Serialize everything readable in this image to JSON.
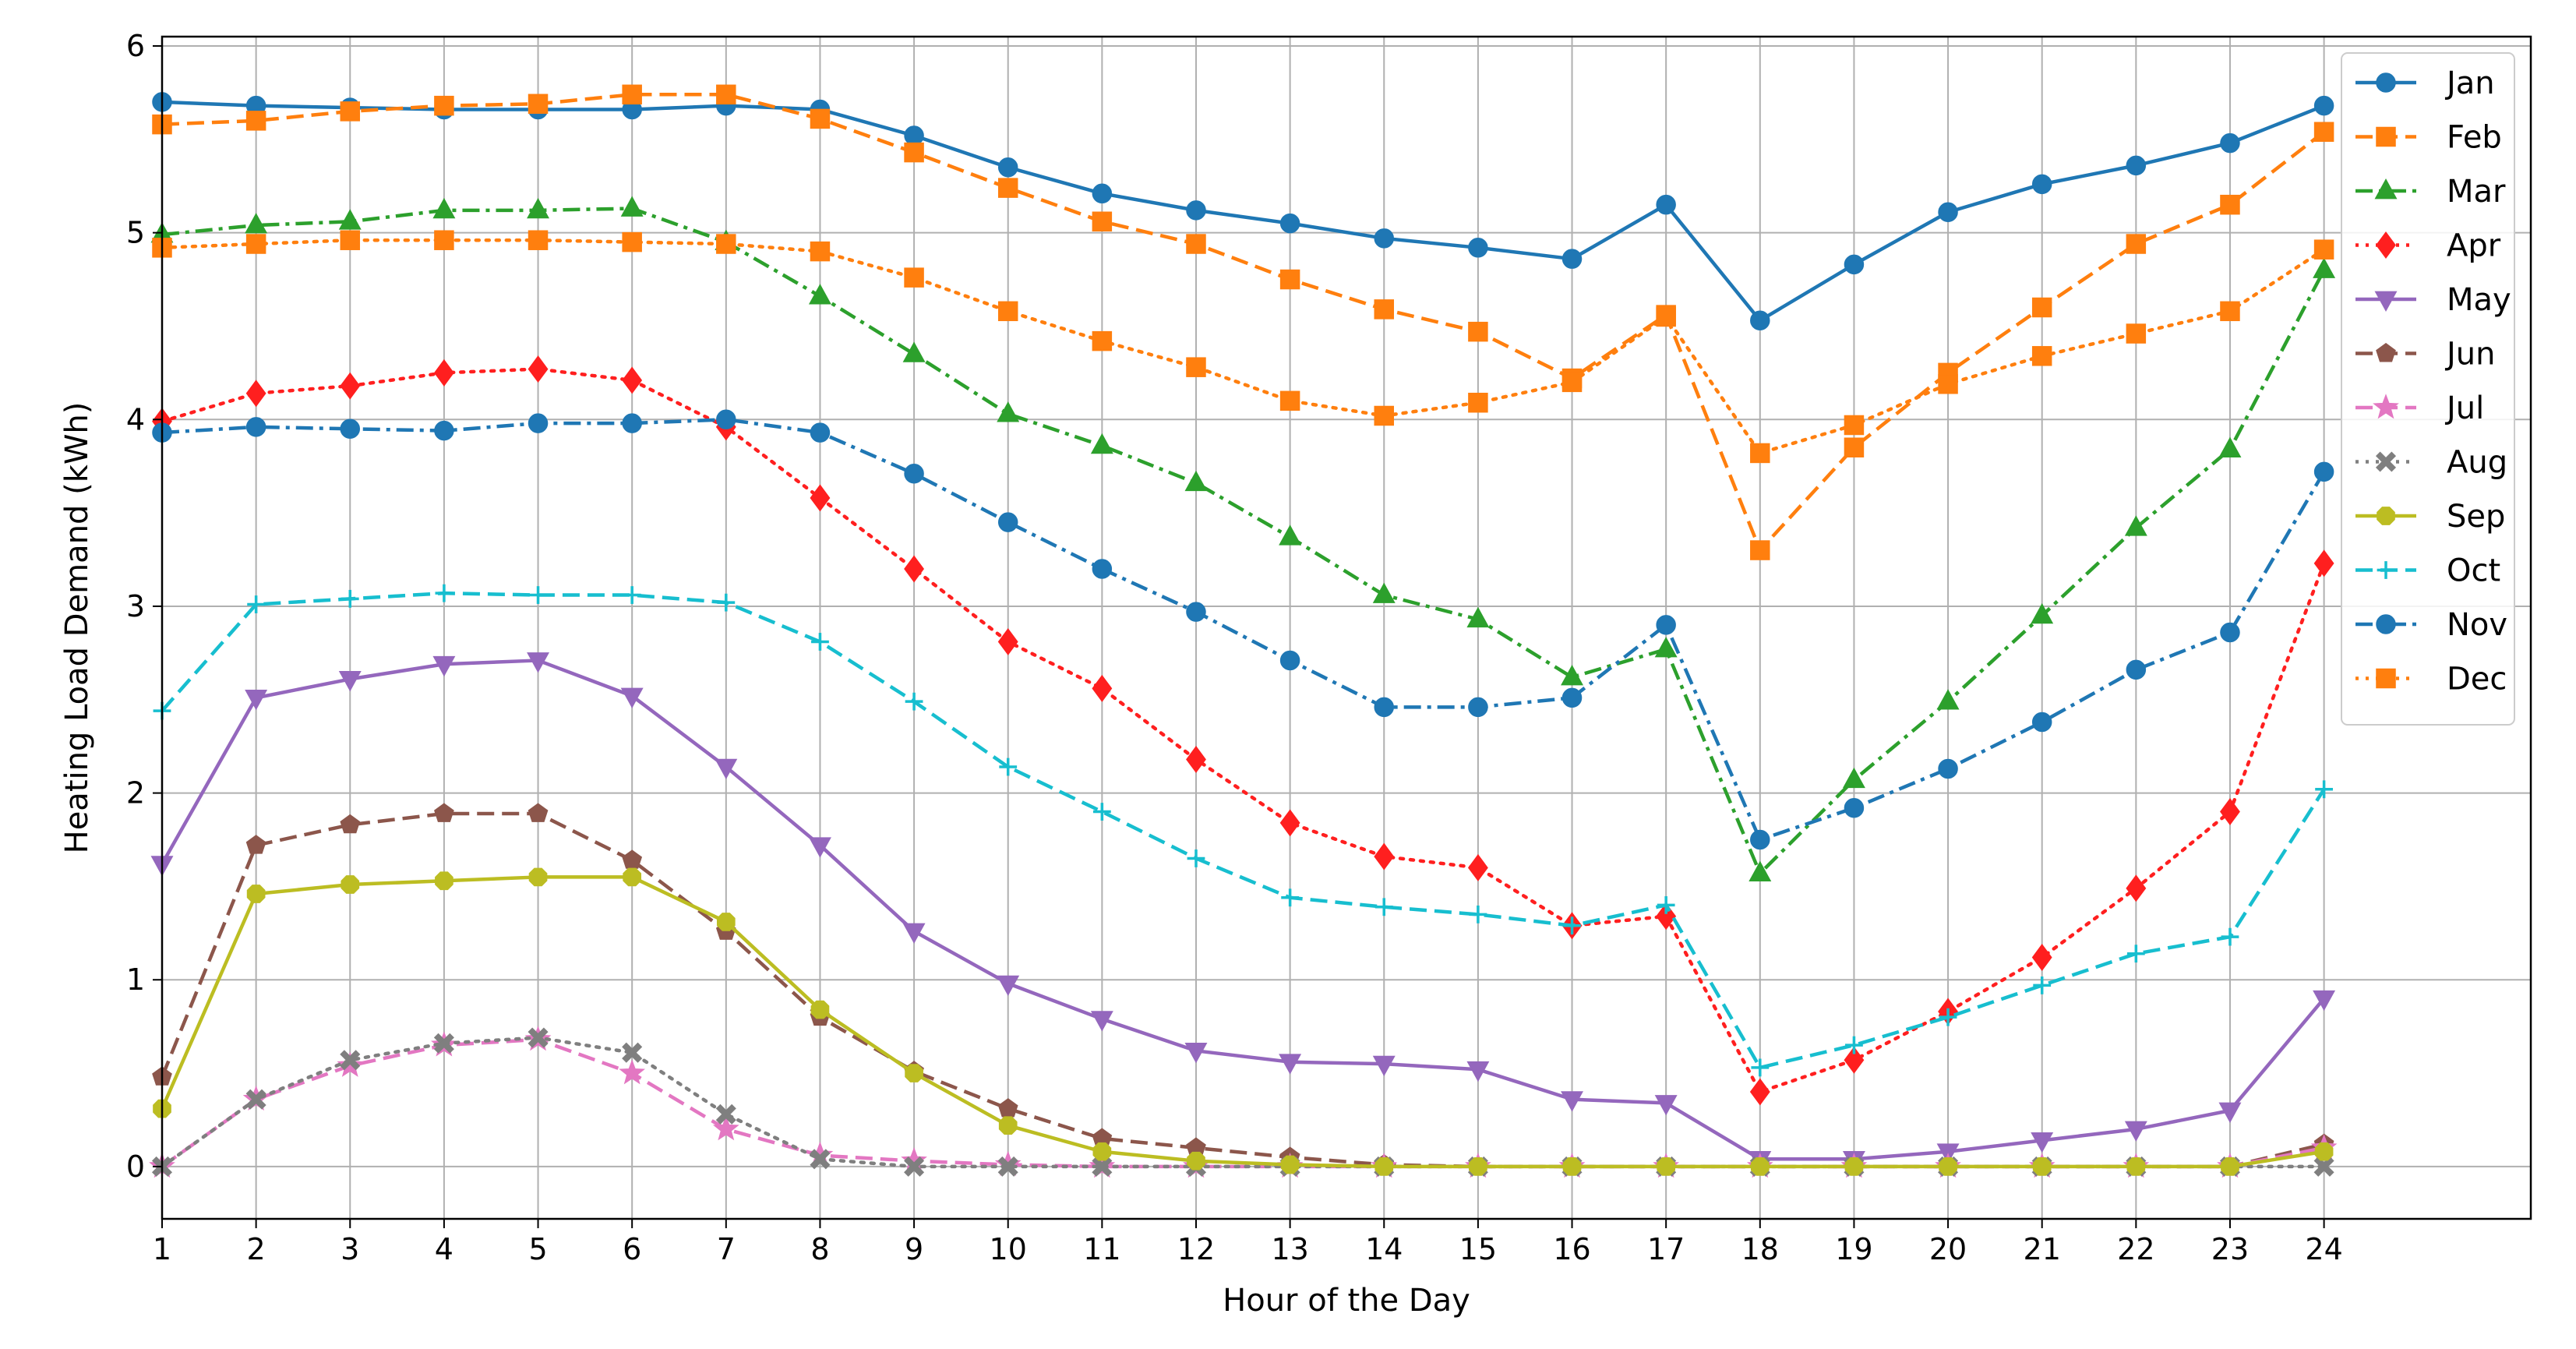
{
  "chart_data": {
    "type": "line",
    "title": "",
    "xlabel": "Hour of the Day",
    "ylabel": "Heating Load Demand (kWh)",
    "x": [
      1,
      2,
      3,
      4,
      5,
      6,
      7,
      8,
      9,
      10,
      11,
      12,
      13,
      14,
      15,
      16,
      17,
      18,
      19,
      20,
      21,
      22,
      23,
      24
    ],
    "xlim": [
      1,
      26.2
    ],
    "ylim": [
      -0.28,
      6.05
    ],
    "xticks": [
      "1",
      "2",
      "3",
      "4",
      "5",
      "6",
      "7",
      "8",
      "9",
      "10",
      "11",
      "12",
      "13",
      "14",
      "15",
      "16",
      "17",
      "18",
      "19",
      "20",
      "21",
      "22",
      "23",
      "24"
    ],
    "yticks": [
      "0",
      "1",
      "2",
      "3",
      "4",
      "5",
      "6"
    ],
    "grid": true,
    "legend_position": "top-right",
    "series": [
      {
        "name": "Jan",
        "color": "#1f77b4",
        "dash": "solid",
        "marker": "circle",
        "values": [
          5.7,
          5.68,
          5.67,
          5.66,
          5.66,
          5.66,
          5.68,
          5.66,
          5.52,
          5.35,
          5.21,
          5.12,
          5.05,
          4.97,
          4.92,
          4.86,
          5.15,
          4.53,
          4.83,
          5.11,
          5.26,
          5.36,
          5.48,
          5.68
        ]
      },
      {
        "name": "Feb",
        "color": "#ff7f0e",
        "dash": "dashed",
        "marker": "square",
        "values": [
          5.58,
          5.6,
          5.65,
          5.68,
          5.69,
          5.74,
          5.74,
          5.61,
          5.43,
          5.24,
          5.06,
          4.94,
          4.75,
          4.59,
          4.47,
          4.22,
          4.56,
          3.3,
          3.85,
          4.25,
          4.6,
          4.94,
          5.15,
          5.54
        ]
      },
      {
        "name": "Mar",
        "color": "#2ca02c",
        "dash": "dashdot",
        "marker": "triangle-up",
        "values": [
          4.99,
          5.04,
          5.06,
          5.12,
          5.12,
          5.13,
          4.95,
          4.66,
          4.35,
          4.03,
          3.86,
          3.66,
          3.37,
          3.06,
          2.93,
          2.62,
          2.77,
          1.57,
          2.07,
          2.49,
          2.95,
          3.42,
          3.84,
          4.8
        ]
      },
      {
        "name": "Apr",
        "color": "#ff1f1f",
        "dash": "dotted",
        "marker": "diamond",
        "values": [
          3.99,
          4.14,
          4.18,
          4.25,
          4.27,
          4.21,
          3.96,
          3.58,
          3.2,
          2.81,
          2.56,
          2.18,
          1.84,
          1.66,
          1.6,
          1.29,
          1.34,
          0.4,
          0.57,
          0.83,
          1.12,
          1.49,
          1.9,
          3.23
        ]
      },
      {
        "name": "May",
        "color": "#9467bd",
        "dash": "solid",
        "marker": "triangle-down",
        "values": [
          1.62,
          2.51,
          2.61,
          2.69,
          2.71,
          2.52,
          2.14,
          1.72,
          1.26,
          0.98,
          0.79,
          0.62,
          0.56,
          0.55,
          0.52,
          0.36,
          0.34,
          0.04,
          0.04,
          0.08,
          0.14,
          0.2,
          0.3,
          0.9
        ]
      },
      {
        "name": "Jun",
        "color": "#8c564b",
        "dash": "dashed",
        "marker": "pentagon",
        "values": [
          0.48,
          1.72,
          1.83,
          1.89,
          1.89,
          1.64,
          1.26,
          0.8,
          0.51,
          0.31,
          0.15,
          0.1,
          0.05,
          0.01,
          0.0,
          0.0,
          0.0,
          0.0,
          0.0,
          0.0,
          0.0,
          0.0,
          0.0,
          0.12
        ]
      },
      {
        "name": "Jul",
        "color": "#e377c2",
        "dash": "dashed",
        "marker": "star",
        "values": [
          0.0,
          0.36,
          0.54,
          0.65,
          0.68,
          0.5,
          0.2,
          0.06,
          0.03,
          0.01,
          0.0,
          0.0,
          0.0,
          0.0,
          0.0,
          0.0,
          0.0,
          0.0,
          0.0,
          0.0,
          0.0,
          0.0,
          0.0,
          0.1
        ]
      },
      {
        "name": "Aug",
        "color": "#7f7f7f",
        "dash": "dotted",
        "marker": "x",
        "values": [
          0.0,
          0.36,
          0.57,
          0.66,
          0.69,
          0.61,
          0.28,
          0.04,
          0.0,
          0.0,
          0.0,
          0.0,
          0.0,
          0.0,
          0.0,
          0.0,
          0.0,
          0.0,
          0.0,
          0.0,
          0.0,
          0.0,
          0.0,
          0.0
        ]
      },
      {
        "name": "Sep",
        "color": "#bcbd22",
        "dash": "solid",
        "marker": "octagon",
        "values": [
          0.31,
          1.46,
          1.51,
          1.53,
          1.55,
          1.55,
          1.31,
          0.84,
          0.5,
          0.22,
          0.08,
          0.03,
          0.01,
          0.0,
          0.0,
          0.0,
          0.0,
          0.0,
          0.0,
          0.0,
          0.0,
          0.0,
          0.0,
          0.08
        ]
      },
      {
        "name": "Oct",
        "color": "#17becf",
        "dash": "dashed",
        "marker": "plus",
        "values": [
          2.44,
          3.01,
          3.04,
          3.07,
          3.06,
          3.06,
          3.02,
          2.81,
          2.49,
          2.14,
          1.9,
          1.65,
          1.44,
          1.39,
          1.35,
          1.29,
          1.4,
          0.53,
          0.65,
          0.8,
          0.97,
          1.14,
          1.23,
          2.02
        ]
      },
      {
        "name": "Nov",
        "color": "#1f77b4",
        "dash": "dashdot",
        "marker": "circle",
        "values": [
          3.93,
          3.96,
          3.95,
          3.94,
          3.98,
          3.98,
          4.0,
          3.93,
          3.71,
          3.45,
          3.2,
          2.97,
          2.71,
          2.46,
          2.46,
          2.51,
          2.9,
          1.75,
          1.92,
          2.13,
          2.38,
          2.66,
          2.86,
          3.72
        ]
      },
      {
        "name": "Dec",
        "color": "#ff7f0e",
        "dash": "dotted",
        "marker": "square",
        "values": [
          4.92,
          4.94,
          4.96,
          4.96,
          4.96,
          4.95,
          4.94,
          4.9,
          4.76,
          4.58,
          4.42,
          4.28,
          4.1,
          4.02,
          4.09,
          4.2,
          4.55,
          3.82,
          3.97,
          4.19,
          4.34,
          4.46,
          4.58,
          4.91
        ]
      }
    ]
  }
}
